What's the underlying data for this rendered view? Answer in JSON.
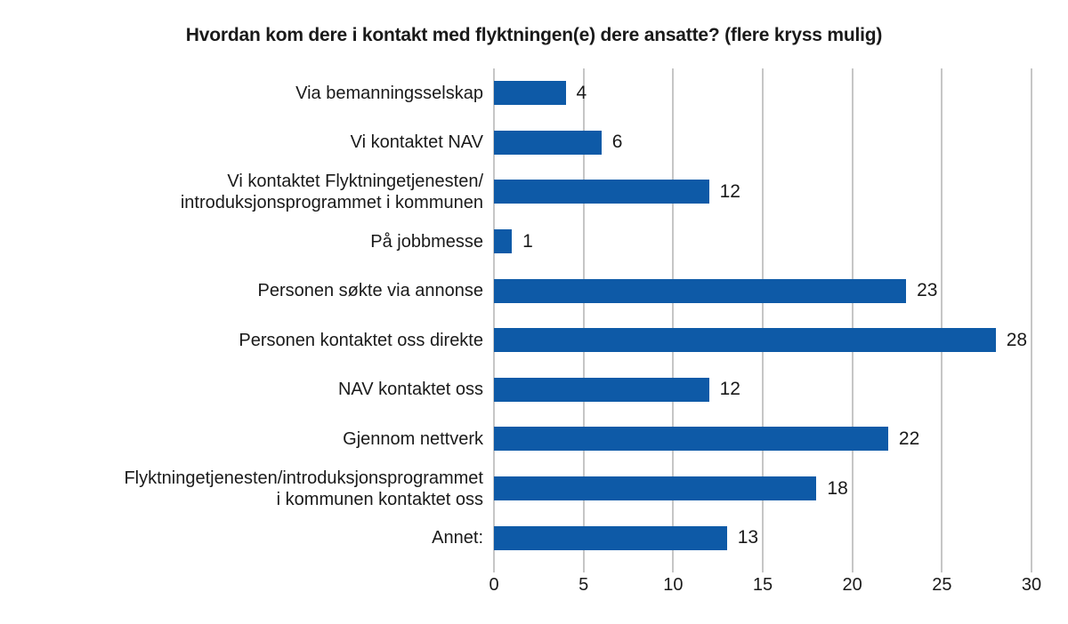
{
  "chart_data": {
    "type": "bar",
    "orientation": "horizontal",
    "title": "Hvordan kom dere i kontakt med flyktningen(e) dere ansatte? (flere kryss mulig)",
    "categories": [
      "Via bemanningsselskap",
      "Vi kontaktet NAV",
      "Vi kontaktet Flyktningetjenesten/\nintroduksjonsprogrammet i kommunen",
      "På jobbmesse",
      "Personen søkte via annonse",
      "Personen kontaktet oss direkte",
      "NAV kontaktet oss",
      "Gjennom nettverk",
      "Flyktningetjenesten/introduksjonsprogrammet\ni kommunen kontaktet oss",
      "Annet:"
    ],
    "values": [
      4,
      6,
      12,
      1,
      23,
      28,
      12,
      22,
      18,
      13
    ],
    "value_labels_shown": true,
    "xlabel": "",
    "ylabel": "",
    "xlim": [
      0,
      30
    ],
    "x_ticks": [
      0,
      5,
      10,
      15,
      20,
      25,
      30
    ],
    "grid": "vertical gridlines on",
    "legend": "none",
    "colors": {
      "bar": "#0E5AA7",
      "gridline": "#8C8C8C",
      "text": "#1A1A1A",
      "background": "#FFFFFF"
    }
  }
}
